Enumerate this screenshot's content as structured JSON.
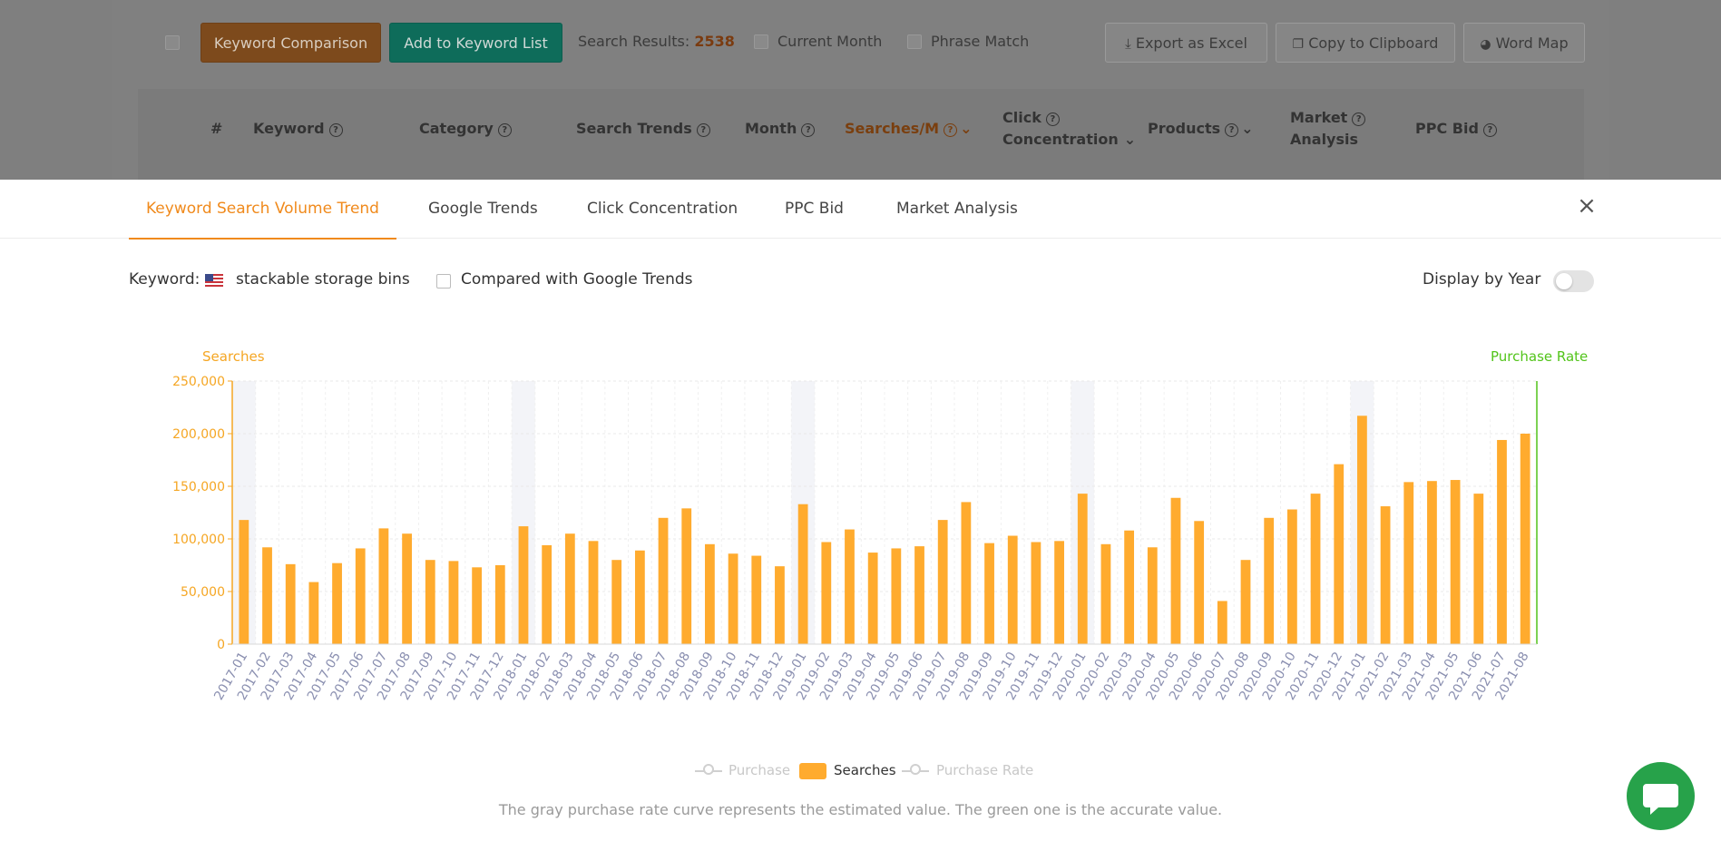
{
  "toolbar": {
    "keyword_comparison": "Keyword Comparison",
    "add_to_list": "Add to Keyword List",
    "search_results_label": "Search Results:",
    "search_results_count": "2538",
    "current_month": "Current Month",
    "phrase_match": "Phrase Match",
    "export_excel": "Export as Excel",
    "copy_clipboard": "Copy to Clipboard",
    "word_map": "Word Map"
  },
  "table_header": {
    "hash": "#",
    "keyword": "Keyword",
    "category": "Category",
    "search_trends": "Search Trends",
    "month": "Month",
    "searches_m": "Searches/M",
    "click": "Click",
    "concentration": "Concentration",
    "products": "Products",
    "market": "Market",
    "analysis": "Analysis",
    "ppc_bid": "PPC Bid"
  },
  "tabs": [
    {
      "label": "Keyword Search Volume Trend",
      "active": true
    },
    {
      "label": "Google Trends",
      "active": false
    },
    {
      "label": "Click Concentration",
      "active": false
    },
    {
      "label": "PPC Bid",
      "active": false
    },
    {
      "label": "Market Analysis",
      "active": false
    }
  ],
  "keyword_label": "Keyword:",
  "keyword_value": "stackable storage bins",
  "compare_google": "Compared with Google Trends",
  "display_by_year": "Display by Year",
  "display_by_year_on": false,
  "close_icon": "×",
  "colors": {
    "accent": "#f08a1c",
    "bar": "#ffab2e",
    "purchase_rate_axis": "#52c41a",
    "teal_button": "#13a085"
  },
  "chart_data": {
    "type": "bar",
    "y_axis_title": "Searches",
    "y2_axis_title": "Purchase Rate",
    "ylim": [
      0,
      250000
    ],
    "yticks": [
      0,
      50000,
      100000,
      150000,
      200000,
      250000
    ],
    "ytick_labels": [
      "0",
      "50,000",
      "100,000",
      "150,000",
      "200,000",
      "250,000"
    ],
    "grid": true,
    "legend": [
      "Purchase",
      "Searches",
      "Purchase Rate"
    ],
    "legend_placement": "bottom-center",
    "highlighted_months": [
      "2017-01",
      "2018-01",
      "2019-01",
      "2020-01",
      "2021-01"
    ],
    "categories": [
      "2017-01",
      "2017-02",
      "2017-03",
      "2017-04",
      "2017-05",
      "2017-06",
      "2017-07",
      "2017-08",
      "2017-09",
      "2017-10",
      "2017-11",
      "2017-12",
      "2018-01",
      "2018-02",
      "2018-03",
      "2018-04",
      "2018-05",
      "2018-06",
      "2018-07",
      "2018-08",
      "2018-09",
      "2018-10",
      "2018-11",
      "2018-12",
      "2019-01",
      "2019-02",
      "2019-03",
      "2019-04",
      "2019-05",
      "2019-06",
      "2019-07",
      "2019-08",
      "2019-09",
      "2019-10",
      "2019-11",
      "2019-12",
      "2020-01",
      "2020-02",
      "2020-03",
      "2020-04",
      "2020-05",
      "2020-06",
      "2020-07",
      "2020-08",
      "2020-09",
      "2020-10",
      "2020-11",
      "2020-12",
      "2021-01",
      "2021-02",
      "2021-03",
      "2021-04",
      "2021-05",
      "2021-06",
      "2021-07",
      "2021-08"
    ],
    "series": [
      {
        "name": "Searches",
        "values": [
          118000,
          92000,
          76000,
          59000,
          77000,
          91000,
          110000,
          105000,
          80000,
          79000,
          73000,
          75000,
          112000,
          94000,
          105000,
          98000,
          80000,
          89000,
          120000,
          129000,
          95000,
          86000,
          84000,
          74000,
          133000,
          97000,
          109000,
          87000,
          91000,
          93000,
          118000,
          135000,
          96000,
          103000,
          97000,
          98000,
          143000,
          95000,
          108000,
          92000,
          139000,
          117000,
          41000,
          80000,
          120000,
          128000,
          143000,
          171000,
          217000,
          131000,
          154000,
          155000,
          156000,
          143000,
          194000,
          200000
        ]
      }
    ]
  },
  "legend_labels": {
    "purchase": "Purchase",
    "searches": "Searches",
    "purchase_rate": "Purchase Rate"
  },
  "footnote": "The gray purchase rate curve represents the estimated value. The green one is the accurate value."
}
